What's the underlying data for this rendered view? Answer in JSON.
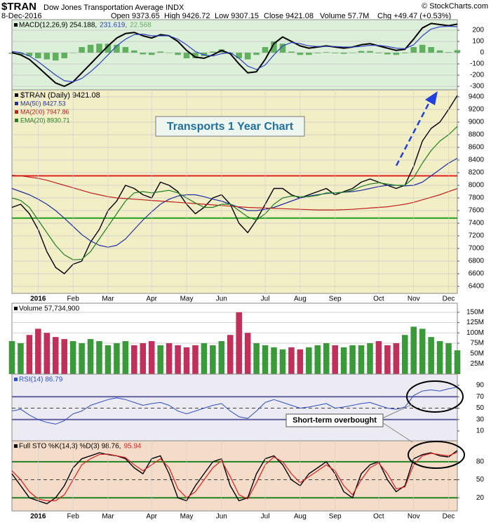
{
  "header": {
    "symbol": "$TRAN",
    "name": "Dow Jones Transportation Average INDX",
    "date": "8-Dec-2016",
    "open": "Open 9373.65",
    "high": "High 9426.72",
    "low": "Low 9307.15",
    "close": "Close 9421.08",
    "volume": "Volume 57.7M",
    "change": "Chg +49.47 (+0.53%)",
    "credit": "© StockCharts.com"
  },
  "chart_data": [
    {
      "type": "line",
      "background": "#dcefd8",
      "legend_layout": "row",
      "grid": true,
      "ylim": [
        -331,
        294
      ],
      "yticks": [
        -300,
        -200,
        -100,
        0,
        100,
        200
      ],
      "series": [
        {
          "name": "MACD(12,26,9) 254.188,",
          "color": "#000000",
          "width": 2,
          "values": [
            0,
            -20,
            -60,
            -130,
            -200,
            -270,
            -300,
            -260,
            -180,
            -100,
            -20,
            60,
            130,
            170,
            180,
            150,
            130,
            160,
            150,
            100,
            20,
            -40,
            -50,
            -20,
            20,
            -10,
            -100,
            -180,
            -170,
            -60,
            80,
            140,
            100,
            60,
            40,
            50,
            60,
            50,
            40,
            50,
            70,
            80,
            60,
            40,
            20,
            30,
            120,
            220,
            260,
            250,
            240,
            254.188
          ]
        },
        {
          "name": "231.619,",
          "color": "#3040c0",
          "width": 1.2,
          "values": [
            10,
            0,
            -30,
            -80,
            -140,
            -200,
            -250,
            -260,
            -230,
            -170,
            -100,
            -20,
            60,
            120,
            160,
            165,
            150,
            150,
            150,
            120,
            70,
            10,
            -20,
            -30,
            -10,
            0,
            -50,
            -120,
            -150,
            -110,
            -20,
            60,
            90,
            80,
            60,
            55,
            55,
            55,
            50,
            50,
            55,
            65,
            65,
            55,
            40,
            35,
            70,
            150,
            210,
            230,
            235,
            231.619
          ]
        },
        {
          "name": "22.568",
          "color": "#60b060",
          "type": "bar",
          "values": [
            -10,
            -20,
            -30,
            -50,
            -60,
            -70,
            -50,
            0,
            50,
            70,
            80,
            80,
            70,
            50,
            20,
            -15,
            -20,
            10,
            0,
            -20,
            -50,
            -50,
            -30,
            10,
            30,
            -10,
            -50,
            -60,
            -20,
            50,
            100,
            80,
            10,
            -20,
            -20,
            -5,
            5,
            -5,
            -10,
            0,
            15,
            15,
            -5,
            -15,
            -20,
            -5,
            50,
            70,
            50,
            20,
            5,
            22.568
          ]
        }
      ]
    },
    {
      "type": "line",
      "background": "#f2eec6",
      "legend_layout": "column",
      "grid": true,
      "ylim": [
        6289,
        9511
      ],
      "yticks": [
        6400,
        6600,
        6800,
        7000,
        7200,
        7400,
        7600,
        7800,
        8000,
        8200,
        8400,
        8600,
        8800,
        9000,
        9200,
        9400
      ],
      "categories": [
        null,
        null,
        null,
        "2016",
        null,
        null,
        null,
        "Feb",
        null,
        null,
        null,
        "Mar",
        null,
        null,
        null,
        null,
        "Apr",
        null,
        null,
        null,
        "May",
        null,
        null,
        null,
        "Jun",
        null,
        null,
        null,
        null,
        "Jul",
        null,
        null,
        null,
        "Aug",
        null,
        null,
        null,
        "Sep",
        null,
        null,
        null,
        null,
        "Oct",
        null,
        null,
        null,
        "Nov",
        null,
        null,
        null,
        "Dec",
        null
      ],
      "hlines": [
        {
          "value": 8150,
          "color": "#e02020"
        },
        {
          "value": 7480,
          "color": "#20a020"
        }
      ],
      "annotation": "Transports 1 Year Chart",
      "series": [
        {
          "name": "$TRAN (Daily) 9421.08",
          "color": "#000000",
          "width": 1.4,
          "values": [
            7650,
            7700,
            7550,
            7300,
            6950,
            6700,
            6600,
            6750,
            6800,
            7100,
            7300,
            7600,
            7750,
            8000,
            7950,
            7850,
            7800,
            8050,
            8000,
            7900,
            7700,
            7550,
            7650,
            7800,
            7850,
            7700,
            7400,
            7250,
            7450,
            7700,
            7950,
            7950,
            7850,
            7800,
            7850,
            7900,
            7950,
            7850,
            7900,
            7950,
            8050,
            8100,
            8050,
            8000,
            7950,
            8000,
            8300,
            8700,
            8900,
            9000,
            9200,
            9421.08
          ]
        },
        {
          "name": "MA(50) 8427.53",
          "color": "#2030a0",
          "width": 1.2,
          "values": [
            7950,
            7900,
            7850,
            7780,
            7700,
            7600,
            7480,
            7350,
            7220,
            7120,
            7050,
            7020,
            7050,
            7150,
            7300,
            7450,
            7580,
            7700,
            7780,
            7830,
            7850,
            7850,
            7820,
            7780,
            7750,
            7700,
            7650,
            7600,
            7600,
            7620,
            7650,
            7700,
            7750,
            7800,
            7830,
            7850,
            7870,
            7880,
            7890,
            7900,
            7920,
            7950,
            7980,
            8000,
            8000,
            7990,
            8000,
            8050,
            8150,
            8250,
            8350,
            8427.53
          ]
        },
        {
          "name": "MA(200) 7947.86",
          "color": "#c02020",
          "width": 1.2,
          "values": [
            8160,
            8150,
            8130,
            8110,
            8080,
            8040,
            8000,
            7960,
            7920,
            7880,
            7850,
            7820,
            7800,
            7790,
            7780,
            7770,
            7760,
            7750,
            7740,
            7730,
            7720,
            7710,
            7700,
            7690,
            7680,
            7670,
            7660,
            7650,
            7645,
            7640,
            7635,
            7630,
            7625,
            7620,
            7615,
            7610,
            7610,
            7610,
            7615,
            7620,
            7630,
            7640,
            7650,
            7660,
            7680,
            7700,
            7730,
            7770,
            7810,
            7850,
            7900,
            7947.86
          ]
        },
        {
          "name": "EMA(20) 8930.71",
          "color": "#208020",
          "width": 1.2,
          "values": [
            7800,
            7760,
            7650,
            7450,
            7250,
            7050,
            6900,
            6820,
            6830,
            6950,
            7150,
            7350,
            7550,
            7750,
            7880,
            7900,
            7880,
            7900,
            7920,
            7880,
            7800,
            7720,
            7650,
            7650,
            7700,
            7700,
            7600,
            7500,
            7450,
            7550,
            7700,
            7800,
            7830,
            7820,
            7820,
            7840,
            7880,
            7880,
            7890,
            7920,
            7980,
            8020,
            8040,
            8020,
            8000,
            8000,
            8120,
            8350,
            8550,
            8700,
            8800,
            8930.71
          ]
        }
      ]
    },
    {
      "type": "bar",
      "background": "#ffffff",
      "legend_layout": "row",
      "grid": true,
      "up_color": "#3a9a3a",
      "down_color": "#c0305a",
      "ylim": [
        0,
        172
      ],
      "yticks": [
        {
          "value": 25,
          "label": "25M"
        },
        {
          "value": 50,
          "label": "50M"
        },
        {
          "value": 75,
          "label": "75M"
        },
        {
          "value": 100,
          "label": "100M"
        },
        {
          "value": 125,
          "label": "125M"
        },
        {
          "value": 150,
          "label": "150M"
        }
      ],
      "series": [
        {
          "name": "Volume 57,734,900",
          "color": "#000000",
          "values": [
            80,
            75,
            95,
            110,
            100,
            90,
            85,
            80,
            75,
            85,
            80,
            70,
            75,
            80,
            70,
            75,
            80,
            70,
            75,
            70,
            65,
            70,
            75,
            70,
            80,
            95,
            150,
            100,
            75,
            70,
            65,
            60,
            65,
            60,
            65,
            70,
            75,
            70,
            65,
            70,
            70,
            75,
            80,
            70,
            75,
            95,
            115,
            110,
            90,
            80,
            75,
            57.7349
          ]
        }
      ]
    },
    {
      "type": "line",
      "background": "#ecebf4",
      "legend_layout": "row",
      "grid": false,
      "ylim": [
        -7.2,
        109.7
      ],
      "yticks": [
        10,
        30,
        50,
        70,
        90
      ],
      "hlines": [
        {
          "value": 70,
          "color": "#6060a0"
        },
        {
          "value": 30,
          "color": "#6060a0"
        },
        {
          "value": 50,
          "color": "#404040",
          "dashed": true
        }
      ],
      "annotation": "Short-term overbought",
      "series": [
        {
          "name": "RSI(14) 86.79",
          "color": "#3050c0",
          "width": 1,
          "values": [
            45,
            48,
            38,
            30,
            25,
            22,
            28,
            40,
            45,
            55,
            60,
            65,
            68,
            65,
            60,
            55,
            58,
            60,
            55,
            45,
            40,
            45,
            50,
            55,
            58,
            45,
            35,
            32,
            45,
            60,
            65,
            60,
            55,
            50,
            52,
            55,
            58,
            50,
            52,
            55,
            58,
            60,
            55,
            50,
            48,
            52,
            72,
            80,
            82,
            80,
            84,
            86.79
          ]
        }
      ]
    },
    {
      "type": "line",
      "background": "#f4dcc8",
      "legend_layout": "row",
      "grid": false,
      "ylim": [
        -2,
        115
      ],
      "yticks": [
        20,
        50,
        80
      ],
      "categories": [
        null,
        null,
        null,
        "2016",
        null,
        null,
        null,
        "Feb",
        null,
        null,
        null,
        "Mar",
        null,
        null,
        null,
        null,
        "Apr",
        null,
        null,
        null,
        "May",
        null,
        null,
        null,
        "Jun",
        null,
        null,
        null,
        null,
        "Jul",
        null,
        null,
        null,
        "Aug",
        null,
        null,
        null,
        "Sep",
        null,
        null,
        null,
        null,
        "Oct",
        null,
        null,
        null,
        "Nov",
        null,
        null,
        null,
        "Dec",
        null
      ],
      "hlines": [
        {
          "value": 80,
          "color": "#208020"
        },
        {
          "value": 20,
          "color": "#208020"
        },
        {
          "value": 50,
          "color": "#404040",
          "dashed": true
        }
      ],
      "series": [
        {
          "name": "Full STO %K(14,3) %D(3) 98.76,",
          "color": "#000000",
          "width": 1.4,
          "values": [
            60,
            40,
            20,
            15,
            10,
            20,
            40,
            70,
            85,
            90,
            95,
            92,
            90,
            85,
            70,
            60,
            85,
            90,
            60,
            20,
            15,
            40,
            60,
            80,
            85,
            40,
            15,
            20,
            60,
            85,
            90,
            75,
            50,
            40,
            60,
            70,
            80,
            60,
            30,
            20,
            60,
            75,
            80,
            50,
            30,
            40,
            85,
            92,
            95,
            90,
            88,
            98.76
          ]
        },
        {
          "name": "95.94",
          "color": "#e02020",
          "width": 1.2,
          "values": [
            65,
            50,
            30,
            18,
            15,
            15,
            25,
            50,
            75,
            85,
            92,
            93,
            90,
            87,
            75,
            65,
            75,
            85,
            70,
            35,
            20,
            30,
            50,
            70,
            82,
            55,
            25,
            18,
            45,
            75,
            88,
            80,
            60,
            45,
            55,
            65,
            75,
            65,
            40,
            25,
            50,
            70,
            78,
            60,
            35,
            38,
            75,
            90,
            94,
            92,
            90,
            95.94
          ]
        }
      ]
    }
  ]
}
